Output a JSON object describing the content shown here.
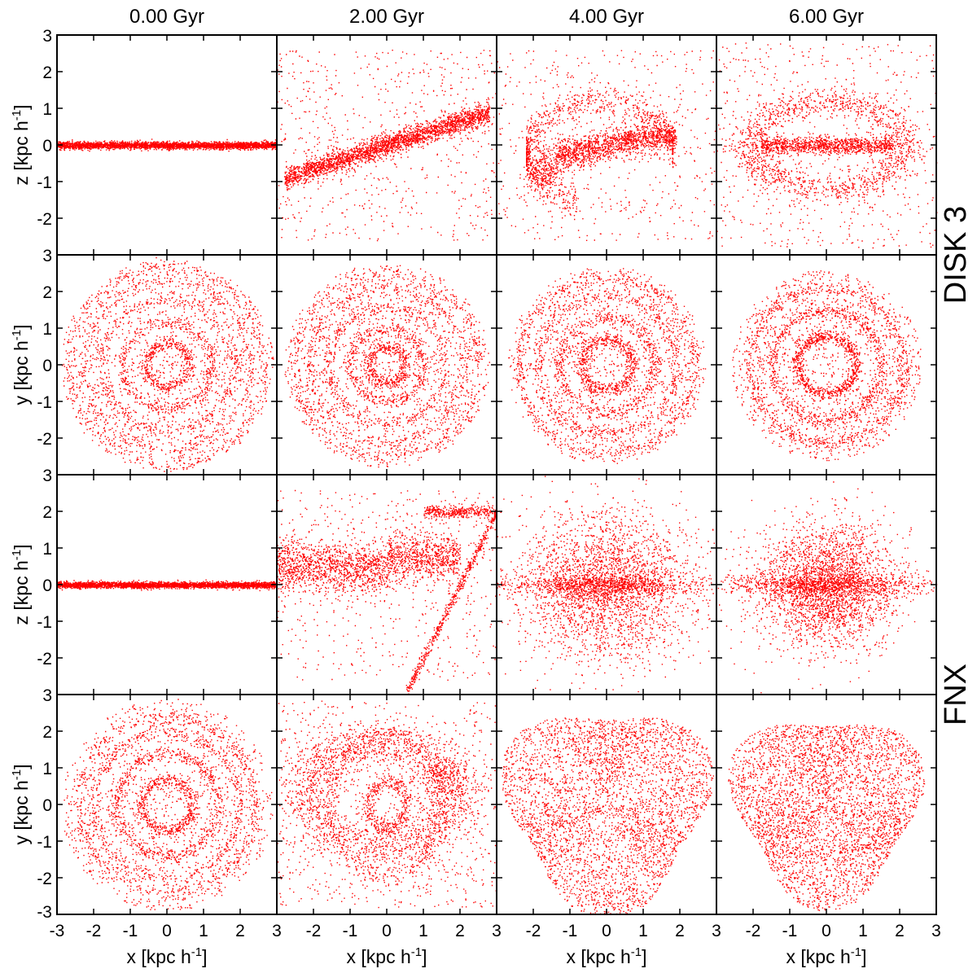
{
  "chart_data": {
    "type": "scatter",
    "rows": 4,
    "columns": 4,
    "point_color": "#ff0000",
    "column_titles": [
      "0.00 Gyr",
      "2.00 Gyr",
      "4.00 Gyr",
      "6.00 Gyr"
    ],
    "row_groups": [
      {
        "label": "DISK 3",
        "rows": [
          0,
          1
        ]
      },
      {
        "label": "FNX",
        "rows": [
          2,
          3
        ]
      }
    ],
    "xlim": [
      -3,
      3
    ],
    "ylim": [
      -3,
      3
    ],
    "x_tick_labels": [
      "-3",
      "-2",
      "-1",
      "0",
      "1",
      "2",
      "3"
    ],
    "x_tick_values": [
      -3,
      -2,
      -1,
      0,
      1,
      2,
      3
    ],
    "y_tick_labels": [
      "-2",
      "-1",
      "0",
      "1",
      "2",
      "3"
    ],
    "y_tick_values": [
      -2,
      -1,
      0,
      1,
      2,
      3
    ],
    "bottom_row_extra_y_tick_label": "-3",
    "xlabel": {
      "main": "x [kpc h",
      "sup": "-1",
      "close": "]"
    },
    "row_ylabels": [
      {
        "main": "z [kpc h",
        "sup": "-1",
        "close": "]"
      },
      {
        "main": "y [kpc h",
        "sup": "-1",
        "close": "]"
      },
      {
        "main": "z [kpc h",
        "sup": "-1",
        "close": "]"
      },
      {
        "main": "y [kpc h",
        "sup": "-1",
        "close": "]"
      }
    ],
    "grid": false,
    "panels": [
      {
        "row": 0,
        "col": 0,
        "group": "DISK 3",
        "projection": "x-z",
        "time": "0.00 Gyr",
        "kind": "edge",
        "points": 3200,
        "spread": 0.08,
        "tilt": 0,
        "length": 3.0,
        "warp": 0
      },
      {
        "row": 0,
        "col": 1,
        "group": "DISK 3",
        "projection": "x-z",
        "time": "2.00 Gyr",
        "kind": "tilted",
        "points": 3200,
        "spread": 0.15,
        "tilt": 0.32,
        "length": 2.8,
        "warp": 0.05
      },
      {
        "row": 0,
        "col": 2,
        "group": "DISK 3",
        "projection": "x-z",
        "time": "4.00 Gyr",
        "kind": "warped",
        "points": 3000,
        "spread": 0.2,
        "tilt": 0.1,
        "length": 2.3,
        "warp": 0.6
      },
      {
        "row": 0,
        "col": 3,
        "group": "DISK 3",
        "projection": "x-z",
        "time": "6.00 Gyr",
        "kind": "ring",
        "points": 3000,
        "spread": 0.12,
        "tilt": 0,
        "length": 1.9,
        "warp": 0.2
      },
      {
        "row": 1,
        "col": 0,
        "group": "DISK 3",
        "projection": "x-y",
        "time": "0.00 Gyr",
        "kind": "face",
        "points": 3400,
        "rings": [
          0.6,
          1.2,
          1.8,
          2.3,
          2.7
        ],
        "radius": 2.9
      },
      {
        "row": 1,
        "col": 1,
        "group": "DISK 3",
        "projection": "x-y",
        "time": "2.00 Gyr",
        "kind": "face",
        "points": 3400,
        "rings": [
          0.5,
          1.0,
          1.6,
          2.1,
          2.5
        ],
        "radius": 2.8
      },
      {
        "row": 1,
        "col": 2,
        "group": "DISK 3",
        "projection": "x-y",
        "time": "4.00 Gyr",
        "kind": "face",
        "points": 3400,
        "rings": [
          0.7,
          1.3,
          1.9,
          2.4
        ],
        "radius": 2.7
      },
      {
        "row": 1,
        "col": 3,
        "group": "DISK 3",
        "projection": "x-y",
        "time": "6.00 Gyr",
        "kind": "face",
        "points": 3400,
        "rings": [
          0.8,
          1.5,
          2.1
        ],
        "radius": 2.6
      },
      {
        "row": 2,
        "col": 0,
        "group": "FNX",
        "projection": "x-z",
        "time": "0.00 Gyr",
        "kind": "edge",
        "points": 3200,
        "spread": 0.07,
        "tilt": 0,
        "length": 3.0,
        "warp": 0
      },
      {
        "row": 2,
        "col": 1,
        "group": "FNX",
        "projection": "x-z",
        "time": "2.00 Gyr",
        "kind": "disrupt",
        "points": 3400,
        "spread": 0.5,
        "tilt": 0.15,
        "length": 2.6,
        "warp": 0.4
      },
      {
        "row": 2,
        "col": 2,
        "group": "FNX",
        "projection": "x-z",
        "time": "4.00 Gyr",
        "kind": "cloud",
        "points": 3600,
        "spread": 1.1,
        "tilt": 0,
        "length": 2.4,
        "warp": 0
      },
      {
        "row": 2,
        "col": 3,
        "group": "FNX",
        "projection": "x-z",
        "time": "6.00 Gyr",
        "kind": "cloud",
        "points": 3600,
        "spread": 0.9,
        "tilt": 0,
        "length": 2.8,
        "warp": 0
      },
      {
        "row": 3,
        "col": 0,
        "group": "FNX",
        "projection": "x-y",
        "time": "0.00 Gyr",
        "kind": "face",
        "points": 3400,
        "rings": [
          0.7,
          1.4,
          2.0,
          2.4
        ],
        "radius": 2.9
      },
      {
        "row": 3,
        "col": 1,
        "group": "FNX",
        "projection": "x-y",
        "time": "2.00 Gyr",
        "kind": "spiral",
        "points": 3600,
        "rings": [
          0.5,
          1.5
        ],
        "radius": 2.7
      },
      {
        "row": 3,
        "col": 2,
        "group": "FNX",
        "projection": "x-y",
        "time": "4.00 Gyr",
        "kind": "blob",
        "points": 3800,
        "rings": [],
        "radius": 2.6
      },
      {
        "row": 3,
        "col": 3,
        "group": "FNX",
        "projection": "x-y",
        "time": "6.00 Gyr",
        "kind": "blob",
        "points": 3800,
        "rings": [],
        "radius": 2.4
      }
    ]
  }
}
